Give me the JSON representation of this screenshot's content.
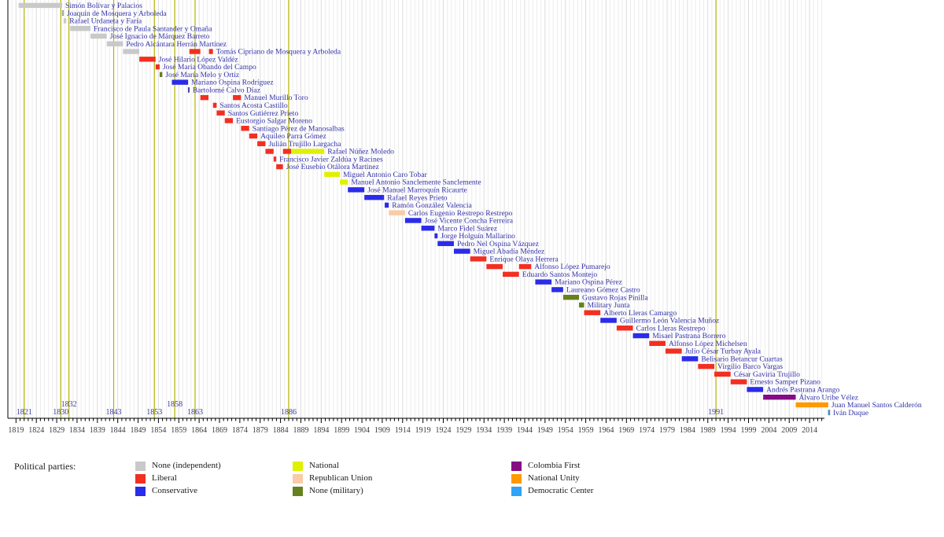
{
  "chart_data": {
    "type": "timeline",
    "description": "Timeline of Colombian heads of state colored by political party, with vertical lines marking constitution years",
    "x_axis": {
      "domain_start": 1817,
      "domain_end": 2019.2,
      "tick_start": 1819,
      "tick_end": 2014,
      "tick_step": 5,
      "minor_step": 1,
      "tick_label_color": "#3c3c3c",
      "axis_color": "#000000",
      "grid_color_minor": "#ececec",
      "grid_color_major": "#dcdcdc"
    },
    "constitution_line_color": "#b3b300",
    "constitution_label_color": "#3d3d9e",
    "president_label_color": "#3232aa",
    "constitutions": [
      {
        "year": 1821,
        "raised": false
      },
      {
        "year": 1830,
        "raised": false
      },
      {
        "year": 1832,
        "raised": true
      },
      {
        "year": 1843,
        "raised": false
      },
      {
        "year": 1853,
        "raised": false
      },
      {
        "year": 1858,
        "raised": true
      },
      {
        "year": 1863,
        "raised": false
      },
      {
        "year": 1886,
        "raised": false
      },
      {
        "year": 1991,
        "raised": false
      }
    ],
    "parties": {
      "none": {
        "label": "None (independent)",
        "color": "#c9c9c9"
      },
      "liberal": {
        "label": "Liberal",
        "color": "#f22f21"
      },
      "conservative": {
        "label": "Conservative",
        "color": "#2b2bea"
      },
      "national": {
        "label": "National",
        "color": "#dff000"
      },
      "republican_union": {
        "label": "Republican Union",
        "color": "#f9cba6"
      },
      "military": {
        "label": "None (military)",
        "color": "#66801e"
      },
      "colombia_first": {
        "label": "Colombia First",
        "color": "#850c85"
      },
      "national_unity": {
        "label": "National Unity",
        "color": "#ff9900"
      },
      "democratic_center": {
        "label": "Democratic Center",
        "color": "#2fa3f5"
      }
    },
    "legend": {
      "title": "Political parties:",
      "columns": [
        [
          "none",
          "liberal",
          "conservative"
        ],
        [
          "national",
          "republican_union",
          "military"
        ],
        [
          "colombia_first",
          "national_unity",
          "democratic_center"
        ]
      ]
    },
    "presidents": [
      {
        "name": "Simón Bolívar y Palacios",
        "terms": [
          {
            "start": 1819.65,
            "end": 1830.35,
            "party": "none"
          }
        ]
      },
      {
        "name": "Joaquín de Mosquera y Arboleda",
        "terms": [
          {
            "start": 1830.35,
            "end": 1830.7,
            "party": "none"
          }
        ]
      },
      {
        "name": "Rafael Urdaneta y Faría",
        "terms": [
          {
            "start": 1830.7,
            "end": 1831.35,
            "party": "none"
          }
        ]
      },
      {
        "name": "Francisco de Paula Santander y Omaña",
        "terms": [
          {
            "start": 1832.3,
            "end": 1837.3,
            "party": "none"
          }
        ]
      },
      {
        "name": "José Ignacio de Márquez Barreto",
        "terms": [
          {
            "start": 1837.3,
            "end": 1841.3,
            "party": "none"
          }
        ]
      },
      {
        "name": "Pedro Alcántara Herrán Martínez",
        "terms": [
          {
            "start": 1841.3,
            "end": 1845.3,
            "party": "none"
          }
        ]
      },
      {
        "name": "Tomás Cipriano de Mosquera y Arboleda",
        "terms": [
          {
            "start": 1845.3,
            "end": 1849.3,
            "party": "none"
          },
          {
            "start": 1861.6,
            "end": 1864.3,
            "party": "liberal"
          },
          {
            "start": 1866.4,
            "end": 1867.4,
            "party": "liberal"
          }
        ]
      },
      {
        "name": "José Hilario López Valdéz",
        "terms": [
          {
            "start": 1849.3,
            "end": 1853.3,
            "party": "liberal"
          }
        ]
      },
      {
        "name": "José María Obando del Campo",
        "terms": [
          {
            "start": 1853.3,
            "end": 1854.3,
            "party": "liberal"
          }
        ]
      },
      {
        "name": "José María Melo y Ortiz",
        "terms": [
          {
            "start": 1854.3,
            "end": 1854.95,
            "party": "military"
          }
        ]
      },
      {
        "name": "Mariano Ospina Rodríguez",
        "terms": [
          {
            "start": 1857.3,
            "end": 1861.3,
            "party": "conservative"
          }
        ]
      },
      {
        "name": "Bartolomé Calvo Díaz",
        "terms": [
          {
            "start": 1861.3,
            "end": 1861.6,
            "party": "conservative"
          }
        ]
      },
      {
        "name": "Manuel Murillo Toro",
        "terms": [
          {
            "start": 1864.3,
            "end": 1866.3,
            "party": "liberal"
          },
          {
            "start": 1872.3,
            "end": 1874.3,
            "party": "liberal"
          }
        ]
      },
      {
        "name": "Santos Acosta Castillo",
        "terms": [
          {
            "start": 1867.4,
            "end": 1868.3,
            "party": "liberal"
          }
        ]
      },
      {
        "name": "Santos Gutiérrez Prieto",
        "terms": [
          {
            "start": 1868.3,
            "end": 1870.3,
            "party": "liberal"
          }
        ]
      },
      {
        "name": "Eustorgio Salgar Moreno",
        "terms": [
          {
            "start": 1870.3,
            "end": 1872.3,
            "party": "liberal"
          }
        ]
      },
      {
        "name": "Santiago Pérez de Manosalbas",
        "terms": [
          {
            "start": 1874.3,
            "end": 1876.3,
            "party": "liberal"
          }
        ]
      },
      {
        "name": "Aquileo Parra Gómez",
        "terms": [
          {
            "start": 1876.3,
            "end": 1878.3,
            "party": "liberal"
          }
        ]
      },
      {
        "name": "Julián Trujillo Largacha",
        "terms": [
          {
            "start": 1878.3,
            "end": 1880.3,
            "party": "liberal"
          }
        ]
      },
      {
        "name": "Rafael Núñez Moledo",
        "terms": [
          {
            "start": 1880.3,
            "end": 1882.3,
            "party": "liberal"
          },
          {
            "start": 1884.6,
            "end": 1886.6,
            "party": "liberal"
          },
          {
            "start": 1886.6,
            "end": 1894.75,
            "party": "national"
          }
        ]
      },
      {
        "name": "Francisco Javier Zaldúa y Racines",
        "terms": [
          {
            "start": 1882.3,
            "end": 1882.95,
            "party": "liberal"
          }
        ]
      },
      {
        "name": "José Eusebio Otálora Martínez",
        "terms": [
          {
            "start": 1882.95,
            "end": 1884.6,
            "party": "liberal"
          }
        ]
      },
      {
        "name": "Miguel Antonio Caro Tobar",
        "terms": [
          {
            "start": 1894.75,
            "end": 1898.6,
            "party": "national"
          }
        ]
      },
      {
        "name": "Manuel Antonio Sanclemente Sanclemente",
        "terms": [
          {
            "start": 1898.6,
            "end": 1900.55,
            "party": "national"
          }
        ]
      },
      {
        "name": "José Manuel Marroquín Ricaurte",
        "terms": [
          {
            "start": 1900.55,
            "end": 1904.6,
            "party": "conservative"
          }
        ]
      },
      {
        "name": "Rafael Reyes Prieto",
        "terms": [
          {
            "start": 1904.6,
            "end": 1909.45,
            "party": "conservative"
          }
        ]
      },
      {
        "name": "Ramón González Valencia",
        "terms": [
          {
            "start": 1909.6,
            "end": 1910.6,
            "party": "conservative"
          }
        ]
      },
      {
        "name": "Carlos Eugenio Restrepo Restrepo",
        "terms": [
          {
            "start": 1910.6,
            "end": 1914.6,
            "party": "republican_union"
          }
        ]
      },
      {
        "name": "José Vicente Concha Ferreira",
        "terms": [
          {
            "start": 1914.6,
            "end": 1918.6,
            "party": "conservative"
          }
        ]
      },
      {
        "name": "Marco Fidel Suárez",
        "terms": [
          {
            "start": 1918.6,
            "end": 1921.85,
            "party": "conservative"
          }
        ]
      },
      {
        "name": "Jorge Holguín Mallarino",
        "terms": [
          {
            "start": 1921.85,
            "end": 1922.6,
            "party": "conservative"
          }
        ]
      },
      {
        "name": "Pedro Nel Ospina Vázquez",
        "terms": [
          {
            "start": 1922.6,
            "end": 1926.6,
            "party": "conservative"
          }
        ]
      },
      {
        "name": "Miguel Abadía Méndez",
        "terms": [
          {
            "start": 1926.6,
            "end": 1930.6,
            "party": "conservative"
          }
        ]
      },
      {
        "name": "Enrique Olaya Herrera",
        "terms": [
          {
            "start": 1930.6,
            "end": 1934.6,
            "party": "liberal"
          }
        ]
      },
      {
        "name": "Alfonso López Pumarejo",
        "terms": [
          {
            "start": 1934.6,
            "end": 1938.6,
            "party": "liberal"
          },
          {
            "start": 1942.6,
            "end": 1945.6,
            "party": "liberal"
          }
        ]
      },
      {
        "name": "Eduardo Santos Montejo",
        "terms": [
          {
            "start": 1938.6,
            "end": 1942.6,
            "party": "liberal"
          }
        ]
      },
      {
        "name": "Mariano Ospina Pérez",
        "terms": [
          {
            "start": 1946.6,
            "end": 1950.6,
            "party": "conservative"
          }
        ]
      },
      {
        "name": "Laureano Gómez Castro",
        "terms": [
          {
            "start": 1950.6,
            "end": 1953.45,
            "party": "conservative"
          }
        ]
      },
      {
        "name": "Gustavo Rojas Pinilla",
        "terms": [
          {
            "start": 1953.45,
            "end": 1957.35,
            "party": "military"
          }
        ]
      },
      {
        "name": "Military Junta",
        "terms": [
          {
            "start": 1957.35,
            "end": 1958.6,
            "party": "military"
          }
        ]
      },
      {
        "name": "Alberto Lleras Camargo",
        "terms": [
          {
            "start": 1958.6,
            "end": 1962.6,
            "party": "liberal"
          }
        ]
      },
      {
        "name": "Guillermo León Valencia Muñoz",
        "terms": [
          {
            "start": 1962.6,
            "end": 1966.6,
            "party": "conservative"
          }
        ]
      },
      {
        "name": "Carlos Lleras Restrepo",
        "terms": [
          {
            "start": 1966.6,
            "end": 1970.6,
            "party": "liberal"
          }
        ]
      },
      {
        "name": "Misael Pastrana Borrero",
        "terms": [
          {
            "start": 1970.6,
            "end": 1974.6,
            "party": "conservative"
          }
        ]
      },
      {
        "name": "Alfonso López Michelsen",
        "terms": [
          {
            "start": 1974.6,
            "end": 1978.6,
            "party": "liberal"
          }
        ]
      },
      {
        "name": "Julio César Turbay Ayala",
        "terms": [
          {
            "start": 1978.6,
            "end": 1982.6,
            "party": "liberal"
          }
        ]
      },
      {
        "name": "Belisario Betancur Cuartas",
        "terms": [
          {
            "start": 1982.6,
            "end": 1986.6,
            "party": "conservative"
          }
        ]
      },
      {
        "name": "Virgilio Barco Vargas",
        "terms": [
          {
            "start": 1986.6,
            "end": 1990.6,
            "party": "liberal"
          }
        ]
      },
      {
        "name": "César Gaviria Trujillo",
        "terms": [
          {
            "start": 1990.6,
            "end": 1994.6,
            "party": "liberal"
          }
        ]
      },
      {
        "name": "Ernesto Samper Pizano",
        "terms": [
          {
            "start": 1994.6,
            "end": 1998.6,
            "party": "liberal"
          }
        ]
      },
      {
        "name": "Andrés Pastrana Arango",
        "terms": [
          {
            "start": 1998.6,
            "end": 2002.6,
            "party": "conservative"
          }
        ]
      },
      {
        "name": "Álvaro Uribe Vélez",
        "terms": [
          {
            "start": 2002.6,
            "end": 2010.6,
            "party": "colombia_first"
          }
        ]
      },
      {
        "name": "Juan Manuel Santos Calderón",
        "terms": [
          {
            "start": 2010.6,
            "end": 2018.6,
            "party": "national_unity"
          }
        ]
      },
      {
        "name": "Iván Duque",
        "terms": [
          {
            "start": 2018.6,
            "end": 2019.0,
            "party": "democratic_center"
          }
        ]
      }
    ]
  }
}
